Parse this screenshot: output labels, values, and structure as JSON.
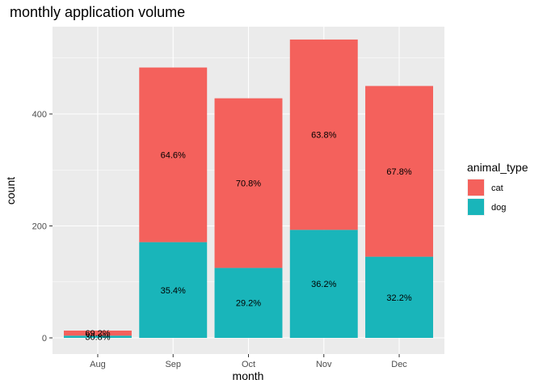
{
  "chart_data": {
    "type": "bar",
    "stacked": true,
    "title": "monthly application volume",
    "xlabel": "month",
    "ylabel": "count",
    "categories": [
      "Aug",
      "Sep",
      "Oct",
      "Nov",
      "Dec"
    ],
    "series": [
      {
        "name": "dog",
        "color": "#19B5BA",
        "values": [
          4,
          171,
          125,
          193,
          145
        ],
        "labels": [
          "30.8%",
          "35.4%",
          "29.2%",
          "36.2%",
          "32.2%"
        ]
      },
      {
        "name": "cat",
        "color": "#F4615C",
        "values": [
          9,
          312,
          303,
          340,
          305
        ],
        "labels": [
          "69.2%",
          "64.6%",
          "70.8%",
          "63.8%",
          "67.8%"
        ]
      }
    ],
    "ylim": [
      0,
      575
    ],
    "yticks": [
      0,
      200,
      400
    ],
    "grid": true,
    "legend": {
      "title": "animal_type",
      "position": "right",
      "entries": [
        {
          "name": "cat",
          "color": "#F4615C"
        },
        {
          "name": "dog",
          "color": "#19B5BA"
        }
      ]
    }
  }
}
